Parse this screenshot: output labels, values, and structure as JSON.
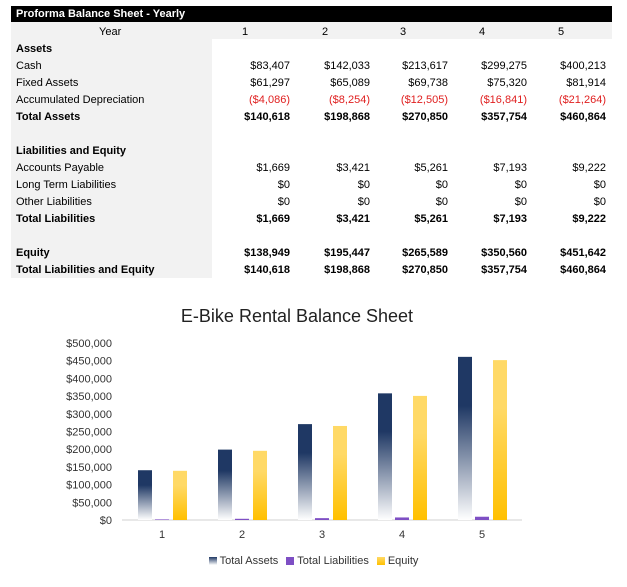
{
  "table": {
    "title": "Proforma Balance Sheet - Yearly",
    "year_label": "Year",
    "years": [
      "1",
      "2",
      "3",
      "4",
      "5"
    ],
    "rows": [
      {
        "label": "Assets",
        "values": [],
        "style": "bold"
      },
      {
        "label": "Cash",
        "values": [
          "$83,407",
          "$142,033",
          "$213,617",
          "$299,275",
          "$400,213"
        ],
        "style": ""
      },
      {
        "label": "Fixed Assets",
        "values": [
          "$61,297",
          "$65,089",
          "$69,738",
          "$75,320",
          "$81,914"
        ],
        "style": ""
      },
      {
        "label": "Accumulated Depreciation",
        "values": [
          "($4,086)",
          "($8,254)",
          "($12,505)",
          "($16,841)",
          "($21,264)"
        ],
        "style": "neg"
      },
      {
        "label": "Total Assets",
        "values": [
          "$140,618",
          "$198,868",
          "$270,850",
          "$357,754",
          "$460,864"
        ],
        "style": "bold"
      },
      {
        "label": "",
        "values": [],
        "style": ""
      },
      {
        "label": "Liabilities and Equity",
        "values": [],
        "style": "bold"
      },
      {
        "label": "Accounts Payable",
        "values": [
          "$1,669",
          "$3,421",
          "$5,261",
          "$7,193",
          "$9,222"
        ],
        "style": ""
      },
      {
        "label": "Long Term Liabilities",
        "values": [
          "$0",
          "$0",
          "$0",
          "$0",
          "$0"
        ],
        "style": ""
      },
      {
        "label": "Other Liabilities",
        "values": [
          "$0",
          "$0",
          "$0",
          "$0",
          "$0"
        ],
        "style": ""
      },
      {
        "label": "Total Liabilities",
        "values": [
          "$1,669",
          "$3,421",
          "$5,261",
          "$7,193",
          "$9,222"
        ],
        "style": "bold"
      },
      {
        "label": "",
        "values": [],
        "style": ""
      },
      {
        "label": "Equity",
        "values": [
          "$138,949",
          "$195,447",
          "$265,589",
          "$350,560",
          "$451,642"
        ],
        "style": "bold"
      },
      {
        "label": "Total Liabilities and Equity",
        "values": [
          "$140,618",
          "$198,868",
          "$270,850",
          "$357,754",
          "$460,864"
        ],
        "style": "bold"
      }
    ]
  },
  "chart_data": {
    "type": "bar",
    "title": "E-Bike Rental Balance Sheet",
    "categories": [
      "1",
      "2",
      "3",
      "4",
      "5"
    ],
    "series": [
      {
        "name": "Total Assets",
        "values": [
          140618,
          198868,
          270850,
          357754,
          460864
        ],
        "color": "#1f3864"
      },
      {
        "name": "Total Liabilities",
        "values": [
          1669,
          3421,
          5261,
          7193,
          9222
        ],
        "color": "#7e4fc4"
      },
      {
        "name": "Equity",
        "values": [
          138949,
          195447,
          265589,
          350560,
          451642
        ],
        "color": "#ffc000"
      }
    ],
    "ylim": [
      0,
      500000
    ],
    "yticks": [
      "$0",
      "$50,000",
      "$100,000",
      "$150,000",
      "$200,000",
      "$250,000",
      "$300,000",
      "$350,000",
      "$400,000",
      "$450,000",
      "$500,000"
    ],
    "grid": false,
    "legend": "bottom"
  }
}
